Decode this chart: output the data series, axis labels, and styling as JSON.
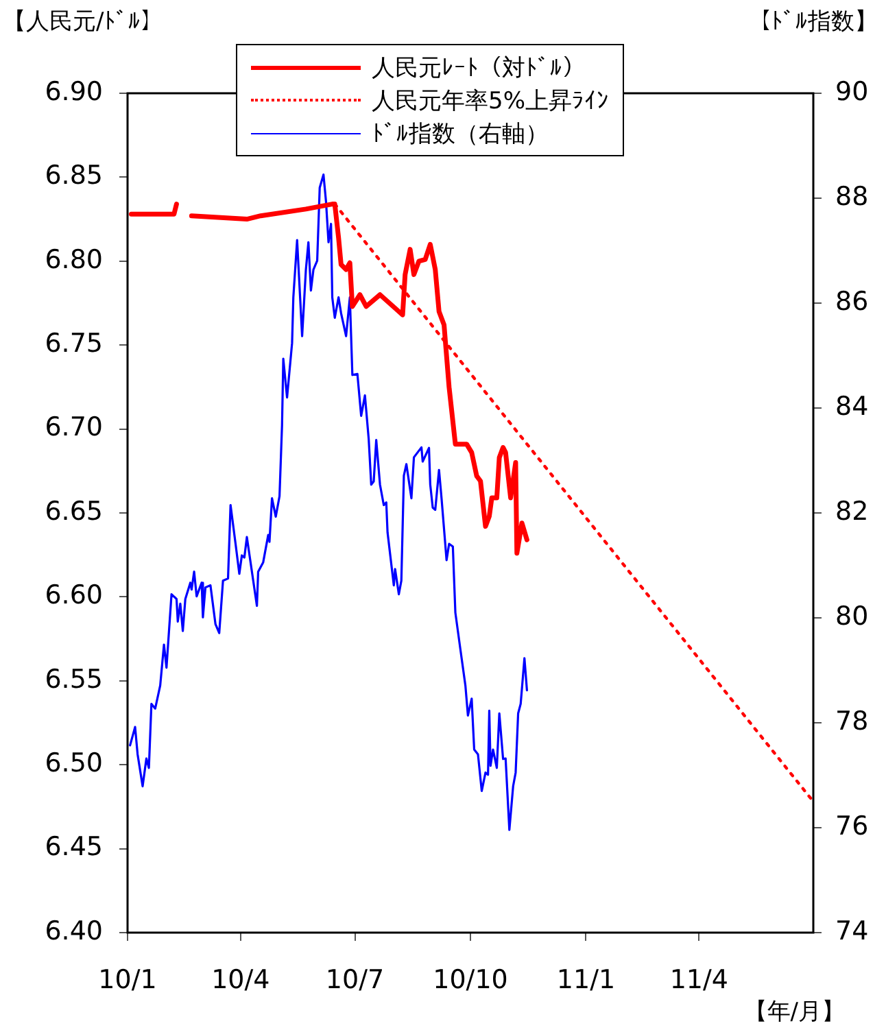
{
  "chart_data": {
    "type": "line",
    "ylabel": "【人民元/ﾄﾞﾙ】",
    "y2label": "【ﾄﾞﾙ指数】",
    "xlabel": "【年/月】",
    "legend": "top",
    "grid": false,
    "xlim": [
      "2010-01",
      "2011-07"
    ],
    "xticks": [
      {
        "value": "2010-01",
        "label": "10/1"
      },
      {
        "value": "2010-04",
        "label": "10/4"
      },
      {
        "value": "2010-07",
        "label": "10/7"
      },
      {
        "value": "2010-10",
        "label": "10/10"
      },
      {
        "value": "2011-01",
        "label": "11/1"
      },
      {
        "value": "2011-04",
        "label": "11/4"
      }
    ],
    "ylim": [
      6.4,
      6.9
    ],
    "yticks": [
      {
        "value": 6.4,
        "label": "6.40"
      },
      {
        "value": 6.45,
        "label": "6.45"
      },
      {
        "value": 6.5,
        "label": "6.50"
      },
      {
        "value": 6.55,
        "label": "6.55"
      },
      {
        "value": 6.6,
        "label": "6.60"
      },
      {
        "value": 6.65,
        "label": "6.65"
      },
      {
        "value": 6.7,
        "label": "6.70"
      },
      {
        "value": 6.75,
        "label": "6.75"
      },
      {
        "value": 6.8,
        "label": "6.80"
      },
      {
        "value": 6.85,
        "label": "6.85"
      },
      {
        "value": 6.9,
        "label": "6.90"
      }
    ],
    "y2lim": [
      74,
      90
    ],
    "y2ticks": [
      74,
      76,
      78,
      80,
      82,
      84,
      86,
      88,
      90
    ],
    "series": [
      {
        "name": "人民元ﾚｰﾄ（対ﾄﾞﾙ）",
        "color": "#ff0000",
        "line_style": "solid",
        "x": [
          "2010-01-04",
          "2010-02-07",
          "2010-02-09",
          "2010-02-15",
          "2010-02-21",
          "2010-04-06",
          "2010-04-17",
          "2010-05-23",
          "2010-06-13",
          "2010-06-15",
          "2010-06-18",
          "2010-06-20",
          "2010-06-24",
          "2010-06-27",
          "2010-06-29",
          "2010-07-05",
          "2010-07-10",
          "2010-07-21",
          "2010-08-05",
          "2010-08-08",
          "2010-08-10",
          "2010-08-14",
          "2010-08-17",
          "2010-08-21",
          "2010-08-26",
          "2010-08-30",
          "2010-09-03",
          "2010-09-06",
          "2010-09-10",
          "2010-09-14",
          "2010-09-19",
          "2010-09-28",
          "2010-10-02",
          "2010-10-06",
          "2010-10-09",
          "2010-10-13",
          "2010-10-16",
          "2010-10-18",
          "2010-10-22",
          "2010-10-24",
          "2010-10-27",
          "2010-10-29",
          "2010-11-02",
          "2010-11-06",
          "2010-11-07",
          "2010-11-11",
          "2010-11-15"
        ],
        "values": [
          6.828,
          6.828,
          6.834,
          null,
          6.827,
          6.825,
          6.827,
          6.831,
          6.834,
          6.834,
          6.814,
          6.798,
          6.795,
          6.799,
          6.773,
          6.78,
          6.773,
          6.78,
          6.77,
          6.768,
          6.792,
          6.807,
          6.792,
          6.8,
          6.801,
          6.81,
          6.795,
          6.77,
          6.762,
          6.725,
          6.691,
          6.691,
          6.686,
          6.672,
          6.669,
          6.642,
          6.648,
          6.659,
          6.659,
          6.683,
          6.689,
          6.686,
          6.659,
          6.68,
          6.626,
          6.644,
          6.634
        ]
      },
      {
        "name": "人民元年率5%上昇ﾗｲﾝ",
        "color": "#ff0000",
        "line_style": "dotted",
        "x": [
          "2010-06-15",
          "2011-06-30"
        ],
        "values": [
          6.834,
          6.479
        ]
      },
      {
        "name": "ﾄﾞﾙ指数（右軸）",
        "color": "#0000ff",
        "line_style": "solid",
        "axis": "y2",
        "x": [
          "2010-01-03",
          "2010-01-07",
          "2010-01-09",
          "2010-01-13",
          "2010-01-16",
          "2010-01-18",
          "2010-01-20",
          "2010-01-23",
          "2010-01-27",
          "2010-01-30",
          "2010-02-01",
          "2010-02-05",
          "2010-02-09",
          "2010-02-10",
          "2010-02-12",
          "2010-02-14",
          "2010-02-16",
          "2010-02-20",
          "2010-02-21",
          "2010-02-23",
          "2010-02-25",
          "2010-03-01",
          "2010-03-02",
          "2010-03-04",
          "2010-03-08",
          "2010-03-12",
          "2010-03-15",
          "2010-03-18",
          "2010-03-22",
          "2010-03-24",
          "2010-03-28",
          "2010-03-31",
          "2010-04-02",
          "2010-04-04",
          "2010-04-06",
          "2010-04-14",
          "2010-04-15",
          "2010-04-19",
          "2010-04-23",
          "2010-04-24",
          "2010-04-26",
          "2010-04-29",
          "2010-05-02",
          "2010-05-04",
          "2010-05-05",
          "2010-05-08",
          "2010-05-12",
          "2010-05-13",
          "2010-05-16",
          "2010-05-20",
          "2010-05-23",
          "2010-05-25",
          "2010-05-27",
          "2010-05-29",
          "2010-06-01",
          "2010-06-03",
          "2010-06-06",
          "2010-06-08",
          "2010-06-10",
          "2010-06-12",
          "2010-06-13",
          "2010-06-15",
          "2010-06-18",
          "2010-06-20",
          "2010-06-24",
          "2010-06-27",
          "2010-06-29",
          "2010-07-03",
          "2010-07-06",
          "2010-07-09",
          "2010-07-12",
          "2010-07-14",
          "2010-07-16",
          "2010-07-18",
          "2010-07-21",
          "2010-07-24",
          "2010-07-26",
          "2010-07-27",
          "2010-08-01",
          "2010-08-02",
          "2010-08-05",
          "2010-08-07",
          "2010-08-09",
          "2010-08-11",
          "2010-08-15",
          "2010-08-17",
          "2010-08-23",
          "2010-08-24",
          "2010-08-29",
          "2010-08-30",
          "2010-09-01",
          "2010-09-03",
          "2010-09-06",
          "2010-09-08",
          "2010-09-12",
          "2010-09-14",
          "2010-09-17",
          "2010-09-19",
          "2010-09-23",
          "2010-09-27",
          "2010-09-29",
          "2010-10-02",
          "2010-10-04",
          "2010-10-07",
          "2010-10-10",
          "2010-10-13",
          "2010-10-15",
          "2010-10-16",
          "2010-10-17",
          "2010-10-19",
          "2010-10-22",
          "2010-10-24",
          "2010-10-27",
          "2010-10-29",
          "2010-11-01",
          "2010-11-04",
          "2010-11-06",
          "2010-11-08",
          "2010-11-10",
          "2010-11-13",
          "2010-11-15"
        ],
        "values": [
          77.57,
          77.92,
          77.4,
          76.79,
          77.32,
          77.14,
          78.36,
          78.27,
          78.71,
          79.49,
          79.05,
          80.45,
          80.36,
          79.93,
          80.27,
          79.75,
          80.36,
          80.67,
          80.54,
          80.88,
          80.41,
          80.67,
          80.01,
          80.58,
          80.62,
          79.88,
          79.71,
          80.71,
          80.75,
          82.15,
          81.41,
          80.84,
          81.19,
          81.15,
          81.54,
          80.23,
          80.88,
          81.06,
          81.58,
          81.45,
          82.28,
          81.93,
          82.32,
          83.67,
          84.94,
          84.2,
          85.24,
          86.11,
          87.2,
          85.37,
          86.64,
          87.16,
          86.24,
          86.64,
          86.81,
          88.2,
          88.45,
          87.94,
          87.16,
          87.51,
          86.11,
          85.72,
          86.11,
          85.81,
          85.37,
          86.11,
          84.63,
          84.65,
          83.85,
          84.24,
          83.41,
          82.54,
          82.6,
          83.39,
          82.54,
          82.15,
          82.2,
          81.63,
          80.62,
          80.93,
          80.45,
          80.71,
          82.71,
          82.93,
          82.28,
          83.06,
          83.25,
          82.98,
          83.24,
          82.54,
          82.1,
          82.06,
          82.82,
          82.28,
          81.1,
          81.41,
          81.36,
          80.1,
          79.4,
          78.71,
          78.14,
          78.46,
          77.49,
          77.4,
          76.7,
          77.05,
          77.01,
          78.23,
          77.18,
          77.49,
          77.14,
          78.18,
          77.31,
          77.32,
          75.96,
          76.79,
          77.05,
          78.18,
          78.36,
          79.23,
          78.62
        ]
      }
    ]
  }
}
